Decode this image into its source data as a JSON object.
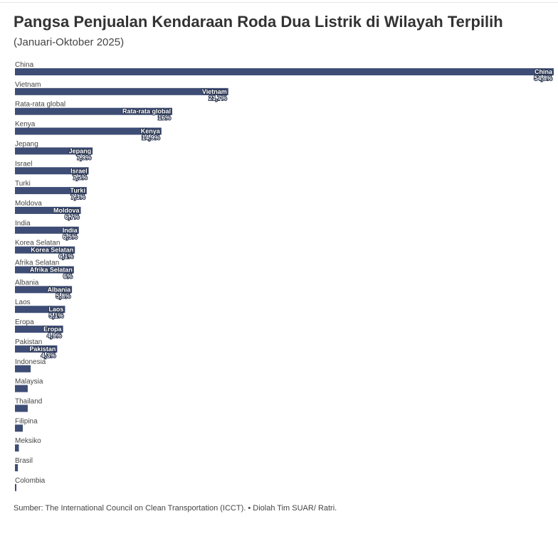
{
  "header": {
    "title": "Pangsa Penjualan Kendaraan Roda Dua Listrik di Wilayah Terpilih",
    "subtitle": "(Januari-Oktober 2025)"
  },
  "footer": {
    "source": "Sumber: The International Council on Clean Transportation (ICCT). • Diolah Tim SUAR/ Ratri."
  },
  "chart_data": {
    "type": "bar",
    "orientation": "horizontal",
    "title": "Pangsa Penjualan Kendaraan Roda Dua Listrik di Wilayah Terpilih",
    "subtitle": "(Januari-Oktober 2025)",
    "bar_color": "#3e4d75",
    "xlim": [
      0,
      54.8
    ],
    "grid": false,
    "legend": "none",
    "categories": [
      "China",
      "Vietnam",
      "Rata-rata global",
      "Kenya",
      "Jepang",
      "Israel",
      "Turki",
      "Moldova",
      "India",
      "Korea Selatan",
      "Afrika Selatan",
      "Albania",
      "Laos",
      "Eropa",
      "Pakistan",
      "Indonesia",
      "Malaysia",
      "Thailand",
      "Filipina",
      "Meksiko",
      "Brasil",
      "Colombia"
    ],
    "values": [
      54.8,
      21.7,
      16,
      14.9,
      7.9,
      7.5,
      7.3,
      6.7,
      6.5,
      6.1,
      6,
      5.8,
      5.1,
      4.9,
      4.3,
      1.6,
      1.3,
      1.3,
      0.8,
      0.4,
      0.3,
      0.1
    ],
    "value_labels": [
      "54,8%",
      "21,7%",
      "16%",
      "14,9%",
      "7,9%",
      "7,5%",
      "7,3%",
      "6,7%",
      "6,5%",
      "6,1%",
      "6%",
      "5,8%",
      "5,1%",
      "4,9%",
      "4,3%",
      "",
      "",
      "",
      "",
      "",
      "",
      ""
    ]
  }
}
